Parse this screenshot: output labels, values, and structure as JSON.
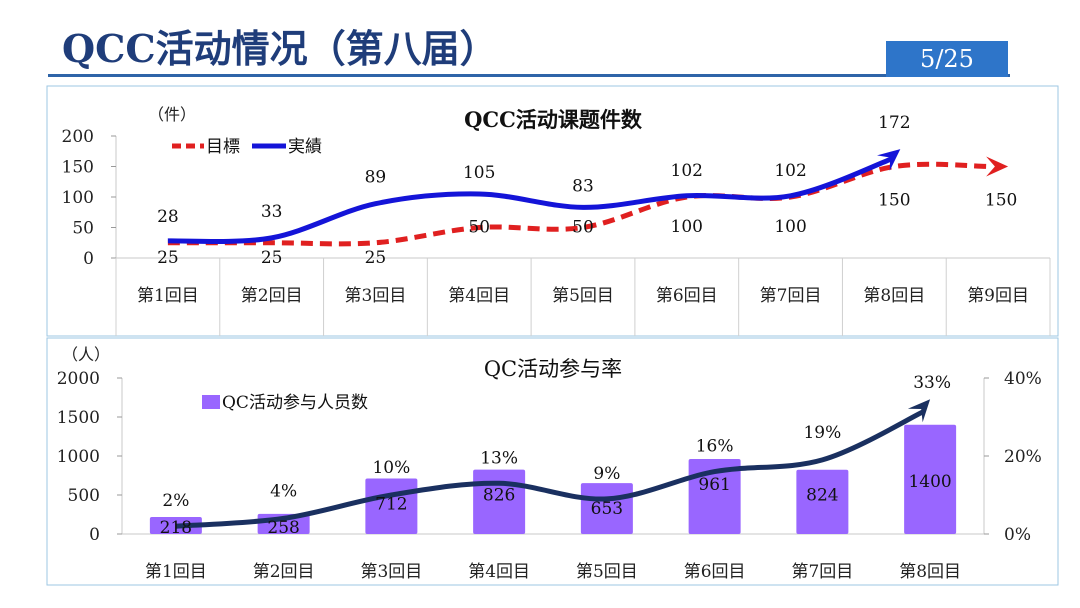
{
  "header": {
    "title": "QCC活动情况（第八届）",
    "page_number": "5/25"
  },
  "colors": {
    "target": "#e02020",
    "actual": "#1414d8",
    "bar": "#9966ff",
    "rate_line": "#1a3060",
    "title": "#1f3d7a",
    "page_badge": "#2e75c9"
  },
  "chart_data": [
    {
      "type": "line",
      "title": "QCC活动课题件数",
      "yunit": "（件）",
      "categories": [
        "第1回目",
        "第2回目",
        "第3回目",
        "第4回目",
        "第5回目",
        "第6回目",
        "第7回目",
        "第8回目",
        "第9回目"
      ],
      "series": [
        {
          "name": "目標",
          "values": [
            25,
            25,
            25,
            50,
            50,
            100,
            100,
            150,
            150
          ]
        },
        {
          "name": "実績",
          "values": [
            28,
            33,
            89,
            105,
            83,
            102,
            102,
            172,
            null
          ]
        }
      ],
      "ylim": [
        0,
        200
      ],
      "yticks": [
        "0",
        "50",
        "100",
        "150",
        "200"
      ],
      "legend_position": "top-left"
    },
    {
      "type": "bar",
      "title": "QC活动参与率",
      "yunit": "（人）",
      "categories": [
        "第1回目",
        "第2回目",
        "第3回目",
        "第4回目",
        "第5回目",
        "第6回目",
        "第7回目",
        "第8回目"
      ],
      "series": [
        {
          "name": "QC活动参与人员数",
          "values": [
            218,
            258,
            712,
            826,
            653,
            961,
            824,
            1400
          ],
          "axis": "left"
        },
        {
          "name": "",
          "values": [
            2,
            4,
            10,
            13,
            9,
            16,
            19,
            33
          ],
          "value_labels": [
            "2%",
            "4%",
            "10%",
            "13%",
            "9%",
            "16%",
            "19%",
            "33%"
          ],
          "axis": "right",
          "render": "line"
        }
      ],
      "ylim": [
        0,
        2000
      ],
      "yticks": [
        "0",
        "500",
        "1000",
        "1500",
        "2000"
      ],
      "y2lim": [
        0,
        40
      ],
      "y2ticks": [
        "0%",
        "20%",
        "40%"
      ],
      "legend_position": "top-left"
    }
  ]
}
